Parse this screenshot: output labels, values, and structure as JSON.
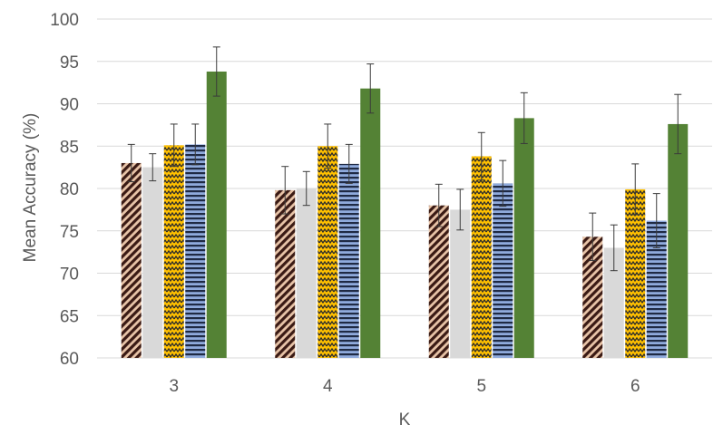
{
  "chart_data": {
    "type": "bar",
    "title": "",
    "xlabel": "K",
    "ylabel": "Mean Accuracy (%)",
    "categories": [
      "3",
      "4",
      "5",
      "6"
    ],
    "ylim": [
      60,
      100
    ],
    "yticks": [
      60,
      65,
      70,
      75,
      80,
      85,
      90,
      95,
      100
    ],
    "grid": true,
    "legend": "none",
    "series": [
      {
        "color": "#8b3a2f",
        "pattern": "diagonal-brick",
        "values": [
          83.0,
          79.8,
          78.0,
          74.3
        ],
        "errors": [
          2.2,
          2.8,
          2.5,
          2.8
        ]
      },
      {
        "color": "#d9d9d9",
        "pattern": "solid",
        "values": [
          82.5,
          80.0,
          77.5,
          73.0
        ],
        "errors": [
          1.6,
          2.0,
          2.4,
          2.7
        ]
      },
      {
        "color": "#ffc000",
        "pattern": "zigzag",
        "values": [
          85.1,
          85.0,
          83.8,
          79.9
        ],
        "errors": [
          2.5,
          2.6,
          2.8,
          3.0
        ]
      },
      {
        "color": "#8faadc",
        "pattern": "horizontal-stripes",
        "values": [
          85.2,
          82.9,
          80.6,
          76.2
        ],
        "errors": [
          2.4,
          2.3,
          2.7,
          3.2
        ]
      },
      {
        "color": "#548235",
        "pattern": "solid",
        "values": [
          93.8,
          91.8,
          88.3,
          87.6
        ],
        "errors": [
          2.9,
          2.9,
          3.0,
          3.5
        ]
      }
    ]
  }
}
